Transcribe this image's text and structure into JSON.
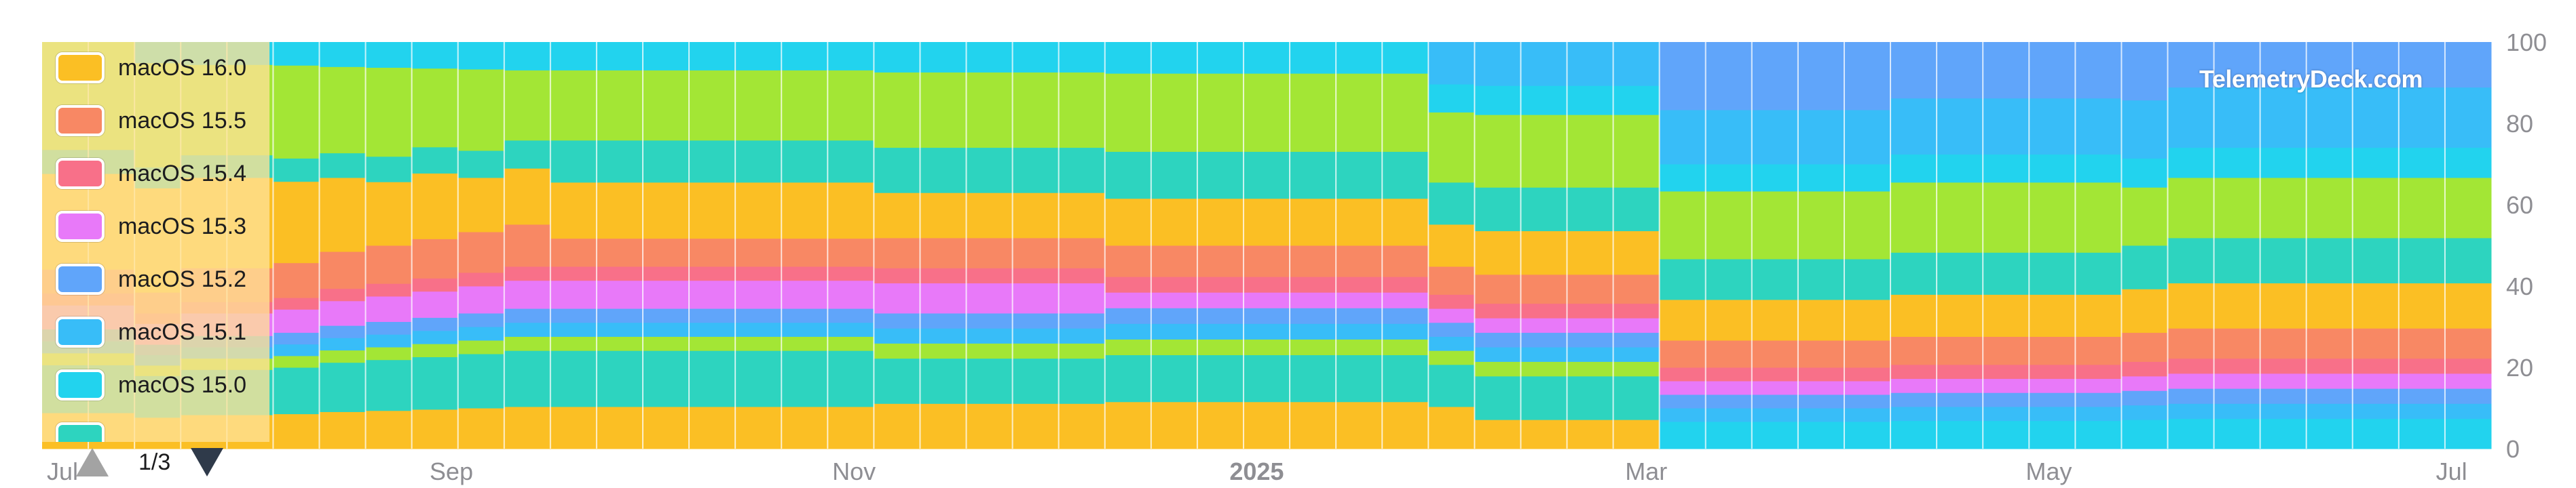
{
  "watermark": "TelemetryDeck.com",
  "legend": {
    "items": [
      {
        "label": "macOS 16.0",
        "color": "#FBBF24"
      },
      {
        "label": "macOS 15.5",
        "color": "#F88864"
      },
      {
        "label": "macOS 15.4",
        "color": "#F87089"
      },
      {
        "label": "macOS 15.3",
        "color": "#E879F9"
      },
      {
        "label": "macOS 15.2",
        "color": "#60A5FA"
      },
      {
        "label": "macOS 15.1",
        "color": "#38BDF8"
      },
      {
        "label": "macOS 15.0",
        "color": "#22D3EE"
      }
    ],
    "page": "1/3"
  },
  "chart_data": {
    "type": "area",
    "stacked": true,
    "normalized_percent": true,
    "x_dates": [
      "2024-07-01",
      "2024-07-08",
      "2024-07-15",
      "2024-07-22",
      "2024-07-29",
      "2024-08-05",
      "2024-08-12",
      "2024-08-19",
      "2024-08-26",
      "2024-09-02",
      "2024-09-09",
      "2024-09-16",
      "2024-09-23",
      "2024-09-30",
      "2024-10-07",
      "2024-10-14",
      "2024-10-21",
      "2024-10-28",
      "2024-11-04",
      "2024-11-11",
      "2024-11-18",
      "2024-11-25",
      "2024-12-02",
      "2024-12-09",
      "2024-12-16",
      "2024-12-23",
      "2024-12-30",
      "2025-01-06",
      "2025-01-13",
      "2025-01-20",
      "2025-01-27",
      "2025-02-03",
      "2025-02-10",
      "2025-02-17",
      "2025-02-24",
      "2025-03-03",
      "2025-03-10",
      "2025-03-17",
      "2025-03-24",
      "2025-03-31",
      "2025-04-07",
      "2025-04-14",
      "2025-04-21",
      "2025-04-28",
      "2025-05-05",
      "2025-05-12",
      "2025-05-19",
      "2025-05-26",
      "2025-06-02",
      "2025-06-09",
      "2025-06-16",
      "2025-06-23",
      "2025-06-30"
    ],
    "x_ticks": [
      {
        "label": "Jul",
        "date": "2024-07-01"
      },
      {
        "label": "Sep",
        "date": "2024-09-01"
      },
      {
        "label": "Nov",
        "date": "2024-11-01"
      },
      {
        "label": "2025",
        "date": "2025-01-01",
        "bold": true
      },
      {
        "label": "Mar",
        "date": "2025-03-01"
      },
      {
        "label": "May",
        "date": "2025-05-01"
      },
      {
        "label": "Jul",
        "date": "2025-07-01"
      }
    ],
    "y_ticks": [
      "0",
      "20",
      "40",
      "60",
      "80",
      "100"
    ],
    "ylim": [
      0,
      100
    ],
    "y_axis_position": "right",
    "grid": "vertical",
    "legend_position": "top-left",
    "series": [
      {
        "name": "",
        "color": "#FBBF24",
        "values": [
          3,
          3,
          3,
          3,
          3,
          3,
          3,
          3,
          3,
          3,
          3,
          3,
          3,
          3,
          3,
          3,
          3,
          3,
          3,
          3,
          3,
          3,
          3,
          3,
          3,
          3,
          3,
          3,
          3,
          3,
          3,
          2,
          2,
          2,
          2,
          0,
          0,
          0,
          0,
          0,
          0,
          0,
          0,
          0,
          0,
          0,
          0,
          0,
          0,
          0,
          0,
          0,
          0
        ]
      },
      {
        "name": "",
        "color": "#2DD4BF",
        "values": [
          4,
          4,
          4,
          4,
          4,
          4,
          4,
          4,
          4,
          4,
          4,
          4,
          4,
          4,
          4,
          4,
          4,
          4,
          3,
          3,
          3,
          3,
          3,
          3,
          3,
          3,
          3,
          3,
          3,
          3,
          3,
          3,
          3,
          3,
          3,
          0,
          0,
          0,
          0,
          0,
          0,
          0,
          0,
          0,
          0,
          0,
          0,
          0,
          0,
          0,
          0,
          0,
          0
        ]
      },
      {
        "name": "",
        "color": "#A3E635",
        "values": [
          1,
          1,
          1,
          1,
          1,
          1,
          1,
          1,
          1,
          1,
          1,
          1,
          1,
          1,
          1,
          1,
          1,
          1,
          1,
          1,
          1,
          1,
          1,
          1,
          1,
          1,
          1,
          1,
          1,
          1,
          1,
          1,
          1,
          1,
          1,
          0,
          0,
          0,
          0,
          0,
          0,
          0,
          0,
          0,
          0,
          0,
          0,
          0,
          0,
          0,
          0,
          0,
          0
        ]
      },
      {
        "name": "",
        "color": "#22D3EE",
        "values": [
          0,
          0,
          0,
          0,
          0,
          0,
          0,
          0,
          0,
          0,
          0,
          0,
          0,
          0,
          0,
          0,
          0,
          0,
          0,
          0,
          0,
          0,
          0,
          0,
          0,
          0,
          0,
          0,
          0,
          0,
          0,
          0,
          0,
          0,
          0,
          2,
          2,
          2,
          2,
          2,
          2,
          2,
          2,
          2,
          2,
          2,
          2,
          2,
          2,
          2,
          2,
          2,
          2
        ]
      },
      {
        "name": "",
        "color": "#38BDF8",
        "values": [
          1,
          1,
          1,
          1,
          1,
          1,
          1,
          1,
          1,
          1,
          1,
          1,
          1,
          1,
          1,
          1,
          1,
          1,
          1,
          1,
          1,
          1,
          1,
          1,
          1,
          1,
          1,
          1,
          1,
          1,
          1,
          1,
          1,
          1,
          1,
          1,
          1,
          1,
          1,
          1,
          1,
          1,
          1,
          1,
          1,
          1,
          1,
          1,
          1,
          1,
          1,
          1,
          1
        ]
      },
      {
        "name": "",
        "color": "#60A5FA",
        "values": [
          1,
          1,
          1,
          1,
          1,
          1,
          1,
          1,
          1,
          1,
          1,
          1,
          1,
          1,
          1,
          1,
          1,
          1,
          1,
          1,
          1,
          1,
          1,
          1,
          1,
          1,
          1,
          1,
          1,
          1,
          1,
          1,
          1,
          1,
          1,
          1,
          1,
          1,
          1,
          1,
          1,
          1,
          1,
          1,
          1,
          1,
          1,
          1,
          1,
          1,
          1,
          1,
          1
        ]
      },
      {
        "name": "",
        "color": "#E879F9",
        "values": [
          2,
          2,
          2,
          2,
          2,
          2,
          2,
          2,
          2,
          2,
          2,
          2,
          2,
          2,
          2,
          2,
          2,
          2,
          2,
          2,
          2,
          2,
          2,
          1,
          1,
          1,
          1,
          1,
          1,
          1,
          1,
          1,
          1,
          1,
          1,
          1,
          1,
          1,
          1,
          1,
          1,
          1,
          1,
          1,
          1,
          1,
          1,
          1,
          1,
          1,
          1,
          1,
          1
        ]
      },
      {
        "name": "",
        "color": "#F87089",
        "values": [
          1,
          1,
          1,
          1,
          1,
          1,
          1,
          1,
          1,
          1,
          1,
          1,
          1,
          1,
          1,
          1,
          1,
          1,
          1,
          1,
          1,
          1,
          1,
          1,
          1,
          1,
          1,
          1,
          1,
          1,
          1,
          1,
          1,
          1,
          1,
          1,
          1,
          1,
          1,
          1,
          1,
          1,
          1,
          1,
          1,
          1,
          1,
          1,
          1,
          1,
          1,
          1,
          1
        ]
      },
      {
        "name": "",
        "color": "#F88864",
        "values": [
          2,
          2,
          2,
          3,
          3,
          3,
          3,
          3,
          3,
          3,
          3,
          2,
          2,
          2,
          2,
          2,
          2,
          2,
          2,
          2,
          2,
          2,
          2,
          2,
          2,
          2,
          2,
          2,
          2,
          2,
          2,
          2,
          2,
          2,
          2,
          2,
          2,
          2,
          2,
          2,
          2,
          2,
          2,
          2,
          2,
          2,
          2,
          2,
          2,
          2,
          2,
          2,
          2
        ]
      },
      {
        "name": "",
        "color": "#FBBF24",
        "values": [
          8,
          8,
          10,
          8,
          8,
          7,
          6,
          5,
          5,
          4,
          4,
          4,
          4,
          4,
          4,
          4,
          4,
          4,
          3,
          3,
          3,
          3,
          3,
          3,
          3,
          3,
          3,
          3,
          3,
          3,
          3,
          3,
          3,
          3,
          3,
          3,
          3,
          3,
          3,
          3,
          3,
          3,
          3,
          3,
          3,
          3,
          3,
          3,
          3,
          3,
          3,
          3,
          3
        ]
      },
      {
        "name": "",
        "color": "#2DD4BF",
        "values": [
          2,
          2,
          2,
          2,
          2,
          2,
          2,
          2,
          2,
          2,
          2,
          3,
          3,
          3,
          3,
          3,
          3,
          3,
          3,
          3,
          3,
          3,
          3,
          3,
          3,
          3,
          3,
          3,
          3,
          3,
          3,
          3,
          3,
          3,
          3,
          3,
          3,
          3,
          3,
          3,
          3,
          3,
          3,
          3,
          3,
          3,
          3,
          3,
          3,
          3,
          3,
          3,
          3
        ]
      },
      {
        "name": "",
        "color": "#A3E635",
        "values": [
          9,
          9,
          10,
          8,
          8,
          8,
          7,
          7,
          6,
          6,
          5,
          5,
          5,
          5,
          5,
          5,
          5,
          5,
          5,
          5,
          5,
          5,
          5,
          5,
          5,
          5,
          5,
          5,
          5,
          5,
          5,
          5,
          5,
          5,
          5,
          5,
          5,
          5,
          5,
          5,
          5,
          5,
          5,
          5,
          5,
          4,
          4,
          4,
          4,
          4,
          4,
          4,
          4
        ]
      },
      {
        "name": "macOS 15.0",
        "color": "#22D3EE",
        "values": [
          0,
          0,
          2,
          2,
          2,
          2,
          2,
          2,
          2,
          2,
          2,
          2,
          2,
          2,
          2,
          2,
          2,
          2,
          2,
          2,
          2,
          2,
          2,
          2,
          2,
          2,
          2,
          2,
          2,
          2,
          2,
          2,
          2,
          2,
          2,
          2,
          2,
          2,
          2,
          2,
          2,
          2,
          2,
          2,
          2,
          2,
          2,
          2,
          2,
          2,
          2,
          2,
          2
        ]
      },
      {
        "name": "macOS 15.1",
        "color": "#38BDF8",
        "values": [
          0,
          0,
          0,
          0,
          0,
          0,
          0,
          0,
          0,
          0,
          0,
          0,
          0,
          0,
          0,
          0,
          0,
          0,
          0,
          0,
          0,
          0,
          0,
          0,
          0,
          0,
          0,
          0,
          0,
          0,
          3,
          3,
          3,
          3,
          3,
          4,
          4,
          4,
          4,
          4,
          4,
          4,
          4,
          4,
          4,
          4,
          4,
          4,
          4,
          4,
          4,
          4,
          4
        ]
      },
      {
        "name": "macOS 15.2",
        "color": "#60A5FA",
        "values": [
          0,
          0,
          0,
          0,
          0,
          0,
          0,
          0,
          0,
          0,
          0,
          0,
          0,
          0,
          0,
          0,
          0,
          0,
          0,
          0,
          0,
          0,
          0,
          0,
          0,
          0,
          0,
          0,
          0,
          0,
          0,
          0,
          0,
          0,
          0,
          5,
          5,
          5,
          5,
          5,
          4,
          4,
          4,
          4,
          4,
          4,
          3,
          3,
          3,
          3,
          3,
          3,
          3
        ]
      },
      {
        "name": "macOS 15.3",
        "color": "#E879F9",
        "values": [
          0,
          0,
          0,
          0,
          0,
          0,
          0,
          0,
          0,
          0,
          0,
          0,
          0,
          0,
          0,
          0,
          0,
          0,
          0,
          0,
          0,
          0,
          0,
          0,
          0,
          0,
          0,
          0,
          0,
          0,
          0,
          0,
          0,
          0,
          0,
          0,
          0,
          0,
          0,
          0,
          0,
          0,
          0,
          0,
          0,
          0,
          0,
          0,
          0,
          0,
          0,
          0,
          0
        ]
      },
      {
        "name": "macOS 15.4",
        "color": "#F87089",
        "values": [
          0,
          0,
          0,
          0,
          0,
          0,
          0,
          0,
          0,
          0,
          0,
          0,
          0,
          0,
          0,
          0,
          0,
          0,
          0,
          0,
          0,
          0,
          0,
          0,
          0,
          0,
          0,
          0,
          0,
          0,
          0,
          0,
          0,
          0,
          0,
          0,
          0,
          0,
          0,
          0,
          0,
          0,
          0,
          0,
          0,
          0,
          0,
          0,
          0,
          0,
          0,
          0,
          0
        ]
      },
      {
        "name": "macOS 15.5",
        "color": "#F88864",
        "values": [
          0,
          0,
          0,
          0,
          0,
          0,
          0,
          0,
          0,
          0,
          0,
          0,
          0,
          0,
          0,
          0,
          0,
          0,
          0,
          0,
          0,
          0,
          0,
          0,
          0,
          0,
          0,
          0,
          0,
          0,
          0,
          0,
          0,
          0,
          0,
          0,
          0,
          0,
          0,
          0,
          0,
          0,
          0,
          0,
          0,
          0,
          0,
          0,
          0,
          0,
          0,
          0,
          0
        ]
      },
      {
        "name": "macOS 16.0",
        "color": "#FBBF24",
        "values": [
          0,
          0,
          0,
          0,
          0,
          0,
          0,
          0,
          0,
          0,
          0,
          0,
          0,
          0,
          0,
          0,
          0,
          0,
          0,
          0,
          0,
          0,
          0,
          0,
          0,
          0,
          0,
          0,
          0,
          0,
          0,
          0,
          0,
          0,
          0,
          0,
          0,
          0,
          0,
          0,
          0,
          0,
          0,
          0,
          0,
          0,
          0,
          0,
          0,
          0,
          0,
          0,
          0
        ]
      }
    ],
    "composition_note": ""
  }
}
